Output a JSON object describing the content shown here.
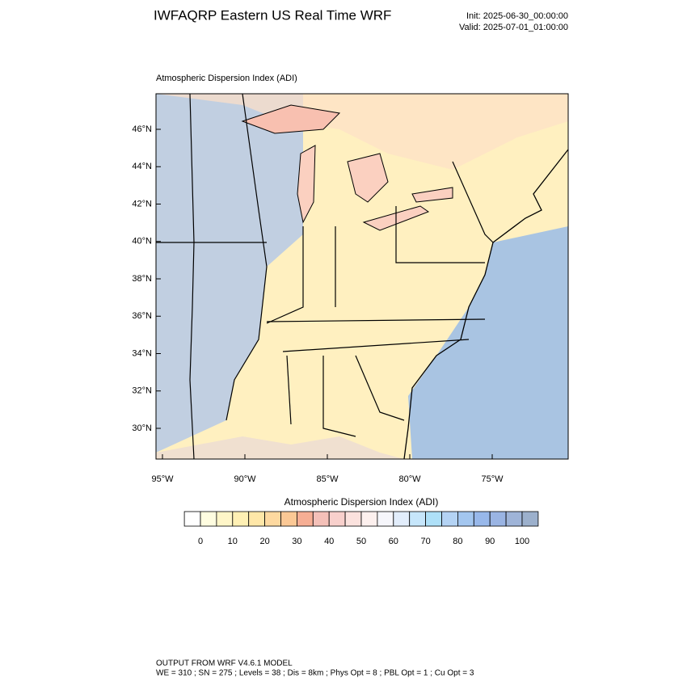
{
  "header": {
    "title": "IWFAQRP Eastern US Real Time WRF",
    "init": "Init: 2025-06-30_00:00:00",
    "valid": "Valid: 2025-07-01_01:00:00"
  },
  "map": {
    "title": "Atmospheric Dispersion Index   (ADI)",
    "lat_ticks": [
      {
        "value": 46,
        "label": "46°N"
      },
      {
        "value": 44,
        "label": "44°N"
      },
      {
        "value": 42,
        "label": "42°N"
      },
      {
        "value": 40,
        "label": "40°N"
      },
      {
        "value": 38,
        "label": "38°N"
      },
      {
        "value": 36,
        "label": "36°N"
      },
      {
        "value": 34,
        "label": "34°N"
      },
      {
        "value": 32,
        "label": "32°N"
      },
      {
        "value": 30,
        "label": "30°N"
      }
    ],
    "lon_ticks": [
      {
        "value": -95,
        "label": "95°W"
      },
      {
        "value": -90,
        "label": "90°W"
      },
      {
        "value": -85,
        "label": "85°W"
      },
      {
        "value": -80,
        "label": "80°W"
      },
      {
        "value": -75,
        "label": "75°W"
      }
    ]
  },
  "colorbar": {
    "title": "Atmospheric Dispersion Index  (ADI)",
    "ticks": [
      0,
      10,
      20,
      30,
      40,
      50,
      60,
      70,
      80,
      90,
      100
    ],
    "colors": [
      "#ffffff",
      "#fffde0",
      "#fff6c8",
      "#fff0b4",
      "#ffe7a8",
      "#fed9a0",
      "#fbc895",
      "#f6ae94",
      "#f4c0b8",
      "#f8d0cc",
      "#fbe2de",
      "#fdf0ee",
      "#f6f6fb",
      "#e2edfb",
      "#c6e6fb",
      "#aee0f8",
      "#b4d3f4",
      "#a3c6ef",
      "#98b8ea",
      "#9ab4e3",
      "#9fb4d8",
      "#9cb0cc"
    ]
  },
  "footer": {
    "line1": "OUTPUT FROM WRF V4.6.1 MODEL",
    "line2": "WE = 310 ; SN = 275 ; Levels = 38 ; Dis = 8km ; Phys Opt = 8 ; PBL Opt = 1 ; Cu Opt = 3"
  }
}
